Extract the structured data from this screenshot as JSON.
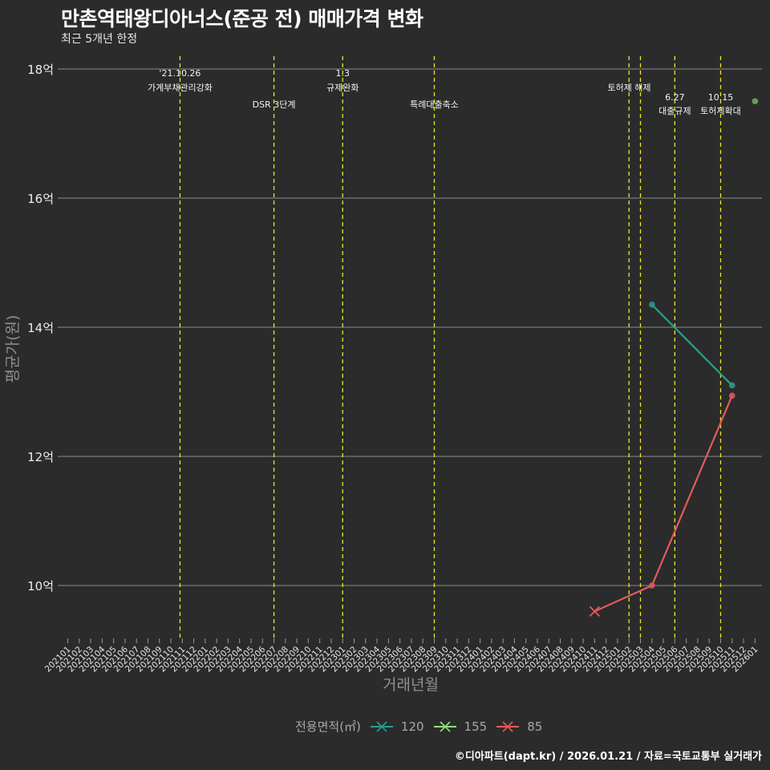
{
  "header": {
    "title": "만촌역태왕디아너스(준공 전) 매매가격 변화",
    "subtitle": "최근 5개년 한정"
  },
  "caption": "©디아파트(dapt.kr) / 2026.01.21 / 자료=국토교통부 실거래가",
  "legend": {
    "title": "전용면적(㎡)",
    "items": [
      {
        "label": "120",
        "color": "#2a9d8f"
      },
      {
        "label": "155",
        "color": "#8ee07a"
      },
      {
        "label": "85",
        "color": "#e45b5b"
      }
    ]
  },
  "colors": {
    "background": "#2b2b2b",
    "grid": "#7a7a7a",
    "event_line": "#e8e82a"
  },
  "chart_data": {
    "type": "line",
    "title": "만촌역태왕디아너스(준공 전) 매매가격 변화",
    "subtitle": "최근 5개년 한정",
    "xlabel": "거래년월",
    "ylabel": "평균가(원)",
    "ylim": [
      9.3,
      18.3
    ],
    "yticks": [
      10,
      12,
      14,
      16,
      18
    ],
    "ytick_labels": [
      "10억",
      "12억",
      "14억",
      "16억",
      "18억"
    ],
    "x_categories": [
      "202101",
      "202102",
      "202103",
      "202104",
      "202105",
      "202106",
      "202107",
      "202108",
      "202109",
      "202110",
      "202111",
      "202112",
      "202201",
      "202202",
      "202203",
      "202204",
      "202205",
      "202206",
      "202207",
      "202208",
      "202209",
      "202210",
      "202211",
      "202212",
      "202301",
      "202302",
      "202303",
      "202304",
      "202305",
      "202306",
      "202307",
      "202308",
      "202309",
      "202310",
      "202311",
      "202312",
      "202401",
      "202402",
      "202403",
      "202404",
      "202405",
      "202406",
      "202407",
      "202408",
      "202409",
      "202410",
      "202411",
      "202412",
      "202501",
      "202502",
      "202503",
      "202504",
      "202505",
      "202506",
      "202507",
      "202508",
      "202509",
      "202510",
      "202511",
      "202512",
      "202601"
    ],
    "grid": true,
    "legend_position": "bottom",
    "legend_title": "전용면적(㎡)",
    "series": [
      {
        "name": "120",
        "color": "#2a9d8f",
        "points": [
          {
            "x": "202504",
            "y": 14.35
          },
          {
            "x": "202511",
            "y": 13.1
          }
        ]
      },
      {
        "name": "155",
        "color": "#6fb35f",
        "points": [
          {
            "x": "202601",
            "y": 17.5
          }
        ]
      },
      {
        "name": "85",
        "color": "#e45b5b",
        "points": [
          {
            "x": "202411",
            "y": 9.6,
            "marker": "x"
          },
          {
            "x": "202504",
            "y": 10.0
          },
          {
            "x": "202511",
            "y": 12.94
          }
        ]
      }
    ],
    "annotations": [
      {
        "x_index": 9.8,
        "line1": "'21.10.26",
        "line2": "가계부채관리강화",
        "row": 0
      },
      {
        "x_index": 18,
        "line1": "",
        "line2": "DSR 3단계",
        "row": 1
      },
      {
        "x_index": 24,
        "line1": "1.3",
        "line2": "규제완화",
        "row": 0
      },
      {
        "x_index": 32,
        "line1": "",
        "line2": "특례대출축소",
        "row": 1
      },
      {
        "x_index": 49,
        "line1": "",
        "line2": "",
        "row": -1
      },
      {
        "x_index": 50,
        "line1": "",
        "line2": "토허제 해제",
        "row": 0
      },
      {
        "x_index": 53,
        "line1": "6.27",
        "line2": "대출규제",
        "row": 2
      },
      {
        "x_index": 57,
        "line1": "10.15",
        "line2": "토허제확대",
        "row": 2
      }
    ]
  }
}
